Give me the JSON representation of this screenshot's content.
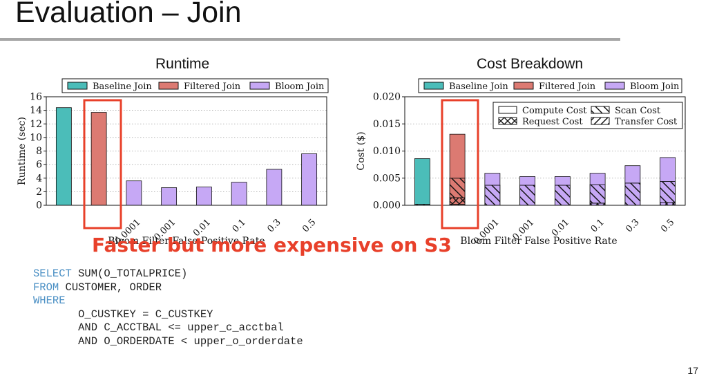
{
  "slide": {
    "title": "Evaluation – Join",
    "callout": "Faster but more expensive on S3",
    "page_number": "17"
  },
  "sql": {
    "lines": [
      {
        "kw": "SELECT",
        "text": " SUM(O_TOTALPRICE)"
      },
      {
        "kw": "FROM",
        "text": " CUSTOMER, ORDER"
      },
      {
        "kw": "WHERE",
        "text": ""
      },
      {
        "kw": "",
        "text": "       O_CUSTKEY = C_CUSTKEY"
      },
      {
        "kw": "",
        "text": "       AND C_ACCTBAL <= upper_c_acctbal"
      },
      {
        "kw": "",
        "text": "       AND O_ORDERDATE < upper_o_orderdate"
      }
    ]
  },
  "colors": {
    "baseline": "#4bbdb9",
    "filtered": "#dc7a72",
    "bloom": "#c6a8f5",
    "highlight": "#e8402a",
    "grid": "#9a9a9a"
  },
  "chart_data": [
    {
      "type": "bar",
      "title": "Runtime",
      "xlabel": "Bloom Filter False Positive Rate",
      "ylabel": "Runtime (sec)",
      "ylim": [
        0,
        16
      ],
      "yticks": [
        "0",
        "2",
        "4",
        "6",
        "8",
        "10",
        "12",
        "14",
        "16"
      ],
      "categories": [
        "",
        "",
        "0.0001",
        "0.001",
        "0.01",
        "0.1",
        "0.3",
        "0.5"
      ],
      "legend": [
        "Baseline Join",
        "Filtered Join",
        "Bloom Join"
      ],
      "series": [
        {
          "name": "Baseline Join",
          "values": [
            14.4,
            null,
            null,
            null,
            null,
            null,
            null,
            null
          ]
        },
        {
          "name": "Filtered Join",
          "values": [
            null,
            13.7,
            null,
            null,
            null,
            null,
            null,
            null
          ]
        },
        {
          "name": "Bloom Join",
          "values": [
            null,
            null,
            3.6,
            2.6,
            2.7,
            3.4,
            5.3,
            7.6
          ]
        }
      ],
      "grid": true,
      "legend_position": "top"
    },
    {
      "type": "bar",
      "title": "Cost Breakdown",
      "xlabel": "Bloom Filter False Positive Rate",
      "ylabel": "Cost ($)",
      "ylim": [
        0,
        0.02
      ],
      "yticks": [
        "0.000",
        "0.005",
        "0.010",
        "0.015",
        "0.020"
      ],
      "categories": [
        "",
        "",
        "0.0001",
        "0.001",
        "0.01",
        "0.1",
        "0.3",
        "0.5"
      ],
      "legend": [
        "Baseline Join",
        "Filtered Join",
        "Bloom Join"
      ],
      "stack_legend": [
        "Compute Cost",
        "Scan Cost",
        "Request Cost",
        "Transfer Cost"
      ],
      "join_type": [
        "Baseline Join",
        "Filtered Join",
        "Bloom Join",
        "Bloom Join",
        "Bloom Join",
        "Bloom Join",
        "Bloom Join",
        "Bloom Join"
      ],
      "series": [
        {
          "name": "Transfer Cost",
          "values": [
            0.0002,
            0.0002,
            0.0,
            0.0,
            0.0,
            0.0,
            0.0,
            0.0
          ]
        },
        {
          "name": "Request Cost",
          "values": [
            0.0,
            0.0012,
            0.0,
            0.0,
            0.0,
            0.0004,
            0.0,
            0.0005
          ]
        },
        {
          "name": "Scan Cost",
          "values": [
            0.0,
            0.0036,
            0.0037,
            0.0037,
            0.0037,
            0.0034,
            0.0041,
            0.0039
          ]
        },
        {
          "name": "Compute Cost",
          "values": [
            0.0084,
            0.0081,
            0.0022,
            0.0016,
            0.0016,
            0.0021,
            0.0032,
            0.0044
          ]
        }
      ],
      "grid": true,
      "legend_position": "top"
    }
  ]
}
